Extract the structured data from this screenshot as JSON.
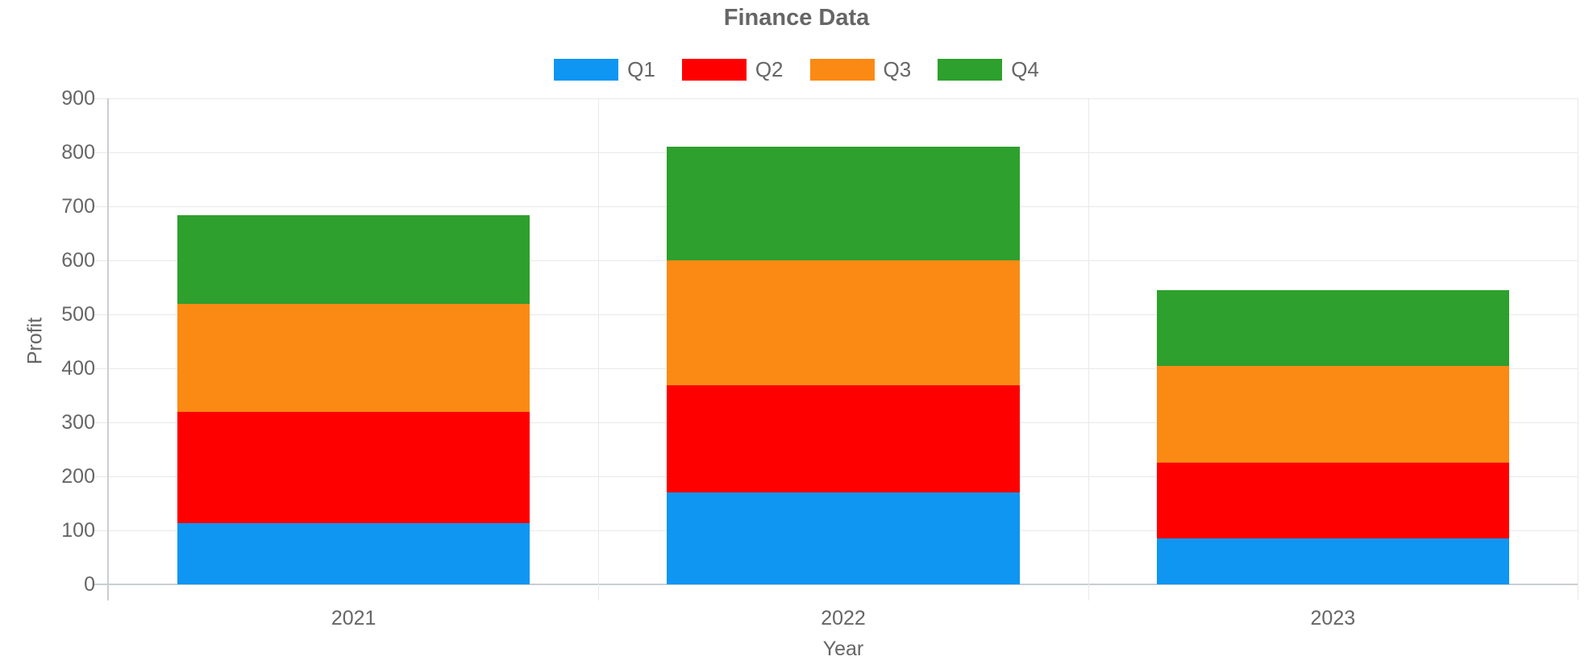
{
  "chart_data": {
    "type": "bar",
    "stacked": true,
    "title": "Finance Data",
    "xlabel": "Year",
    "ylabel": "Profit",
    "categories": [
      "2021",
      "2022",
      "2023"
    ],
    "series": [
      {
        "name": "Q1",
        "color": "#0e96f2",
        "values": [
          113,
          170,
          85
        ]
      },
      {
        "name": "Q2",
        "color": "#ff0000",
        "values": [
          207,
          198,
          140
        ]
      },
      {
        "name": "Q3",
        "color": "#fb8a14",
        "values": [
          200,
          232,
          180
        ]
      },
      {
        "name": "Q4",
        "color": "#2da02d",
        "values": [
          163,
          210,
          140
        ]
      }
    ],
    "stack_totals": [
      683,
      810,
      545
    ],
    "ylim": [
      0,
      900
    ],
    "ytick_step": 100,
    "ytick_labels": [
      "0",
      "100",
      "200",
      "300",
      "400",
      "500",
      "600",
      "700",
      "800",
      "900"
    ],
    "grid": true,
    "legend_position": "top",
    "text_color": "#666666",
    "gridline_color": "#e9e9e9",
    "axisline_color": "#c9ced3"
  }
}
